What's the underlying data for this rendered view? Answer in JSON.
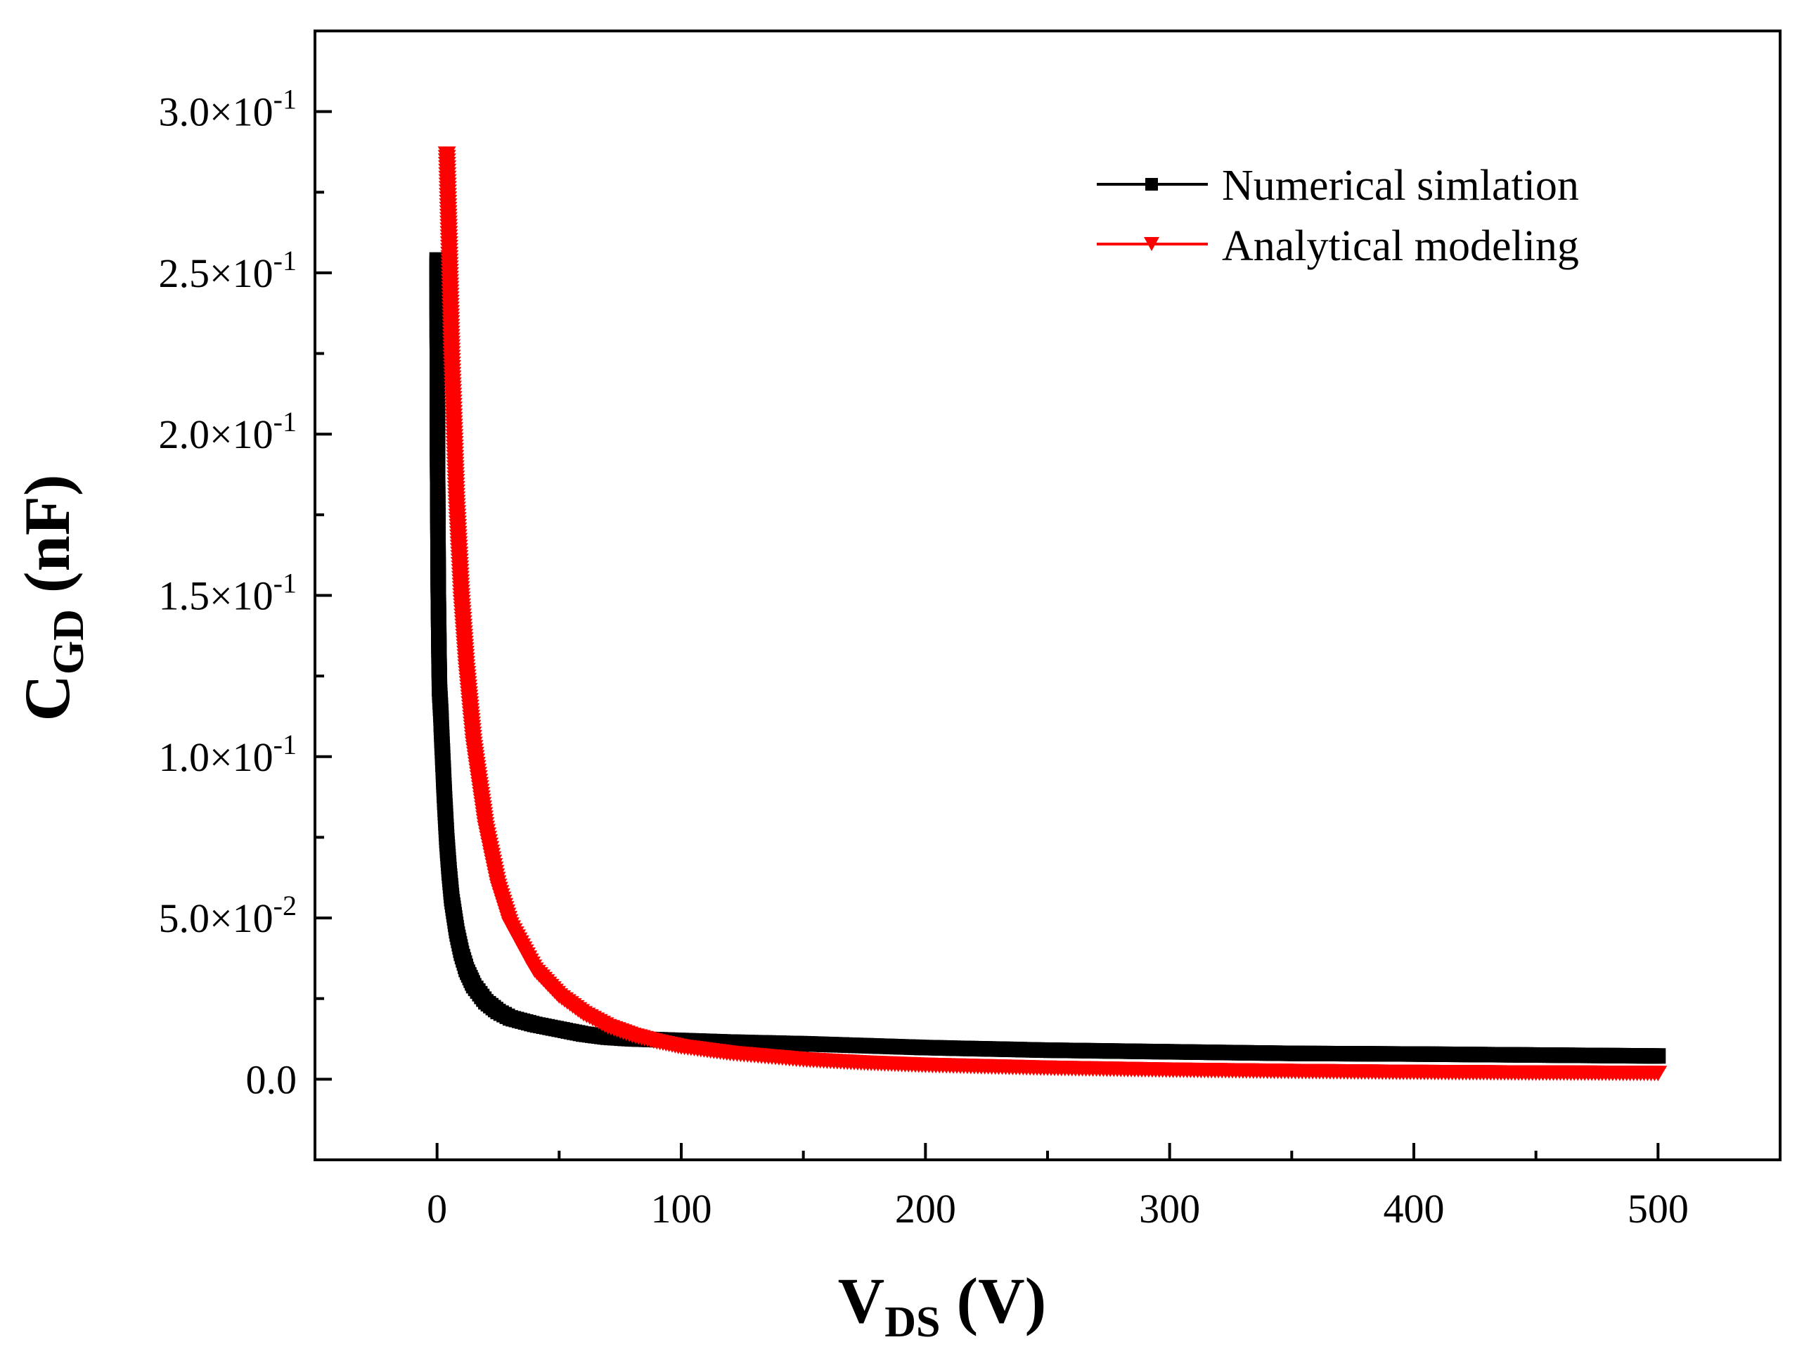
{
  "chart_data": {
    "type": "scatter",
    "xlabel": {
      "main": "V",
      "sub": "DS",
      "unit": " (V)"
    },
    "ylabel": {
      "main": "C",
      "sub": "GD",
      "unit": " (nF)"
    },
    "xlim": [
      -50,
      550
    ],
    "ylim": [
      -0.025,
      0.325
    ],
    "x_ticks": [
      {
        "value": 0,
        "label": "0"
      },
      {
        "value": 100,
        "label": "100"
      },
      {
        "value": 200,
        "label": "200"
      },
      {
        "value": 300,
        "label": "300"
      },
      {
        "value": 400,
        "label": "400"
      },
      {
        "value": 500,
        "label": "500"
      }
    ],
    "y_ticks": [
      {
        "value": 0.0,
        "mantissa": "0.0",
        "exponent": ""
      },
      {
        "value": 0.05,
        "mantissa": "5.0×10",
        "exponent": "-2"
      },
      {
        "value": 0.1,
        "mantissa": "1.0×10",
        "exponent": "-1"
      },
      {
        "value": 0.15,
        "mantissa": "1.5×10",
        "exponent": "-1"
      },
      {
        "value": 0.2,
        "mantissa": "2.0×10",
        "exponent": "-1"
      },
      {
        "value": 0.25,
        "mantissa": "2.5×10",
        "exponent": "-1"
      },
      {
        "value": 0.3,
        "mantissa": "3.0×10",
        "exponent": "-1"
      }
    ],
    "legend_position": "top-right",
    "series": [
      {
        "name": "Numerical simlation",
        "color": "#000000",
        "marker": "square",
        "x": [
          0,
          0.2,
          0.5,
          0.8,
          1,
          1.5,
          2,
          3,
          4,
          5,
          6,
          8,
          10,
          12,
          15,
          20,
          25,
          30,
          40,
          50,
          60,
          70,
          80,
          100,
          120,
          150,
          200,
          250,
          300,
          350,
          400,
          450,
          500
        ],
        "y": [
          0.254,
          0.191,
          0.151,
          0.131,
          0.121,
          0.114,
          0.105,
          0.088,
          0.074,
          0.064,
          0.056,
          0.046,
          0.039,
          0.034,
          0.029,
          0.024,
          0.021,
          0.019,
          0.017,
          0.0155,
          0.014,
          0.013,
          0.0125,
          0.012,
          0.0115,
          0.011,
          0.0098,
          0.009,
          0.0085,
          0.008,
          0.0078,
          0.0075,
          0.0072
        ]
      },
      {
        "name": "Analytical modeling",
        "color": "#ff0000",
        "marker": "triangle-down",
        "x": [
          4,
          5,
          6,
          8,
          10,
          12,
          15,
          20,
          25,
          30,
          40,
          50,
          60,
          70,
          80,
          90,
          100,
          120,
          150,
          175,
          200,
          250,
          300,
          350,
          400,
          450,
          500
        ],
        "y": [
          0.287,
          0.257,
          0.224,
          0.179,
          0.149,
          0.128,
          0.104,
          0.078,
          0.06,
          0.048,
          0.034,
          0.026,
          0.0205,
          0.0165,
          0.0138,
          0.0118,
          0.0102,
          0.0082,
          0.0062,
          0.0052,
          0.0045,
          0.0036,
          0.003,
          0.0026,
          0.0023,
          0.0021,
          0.002
        ]
      }
    ]
  }
}
